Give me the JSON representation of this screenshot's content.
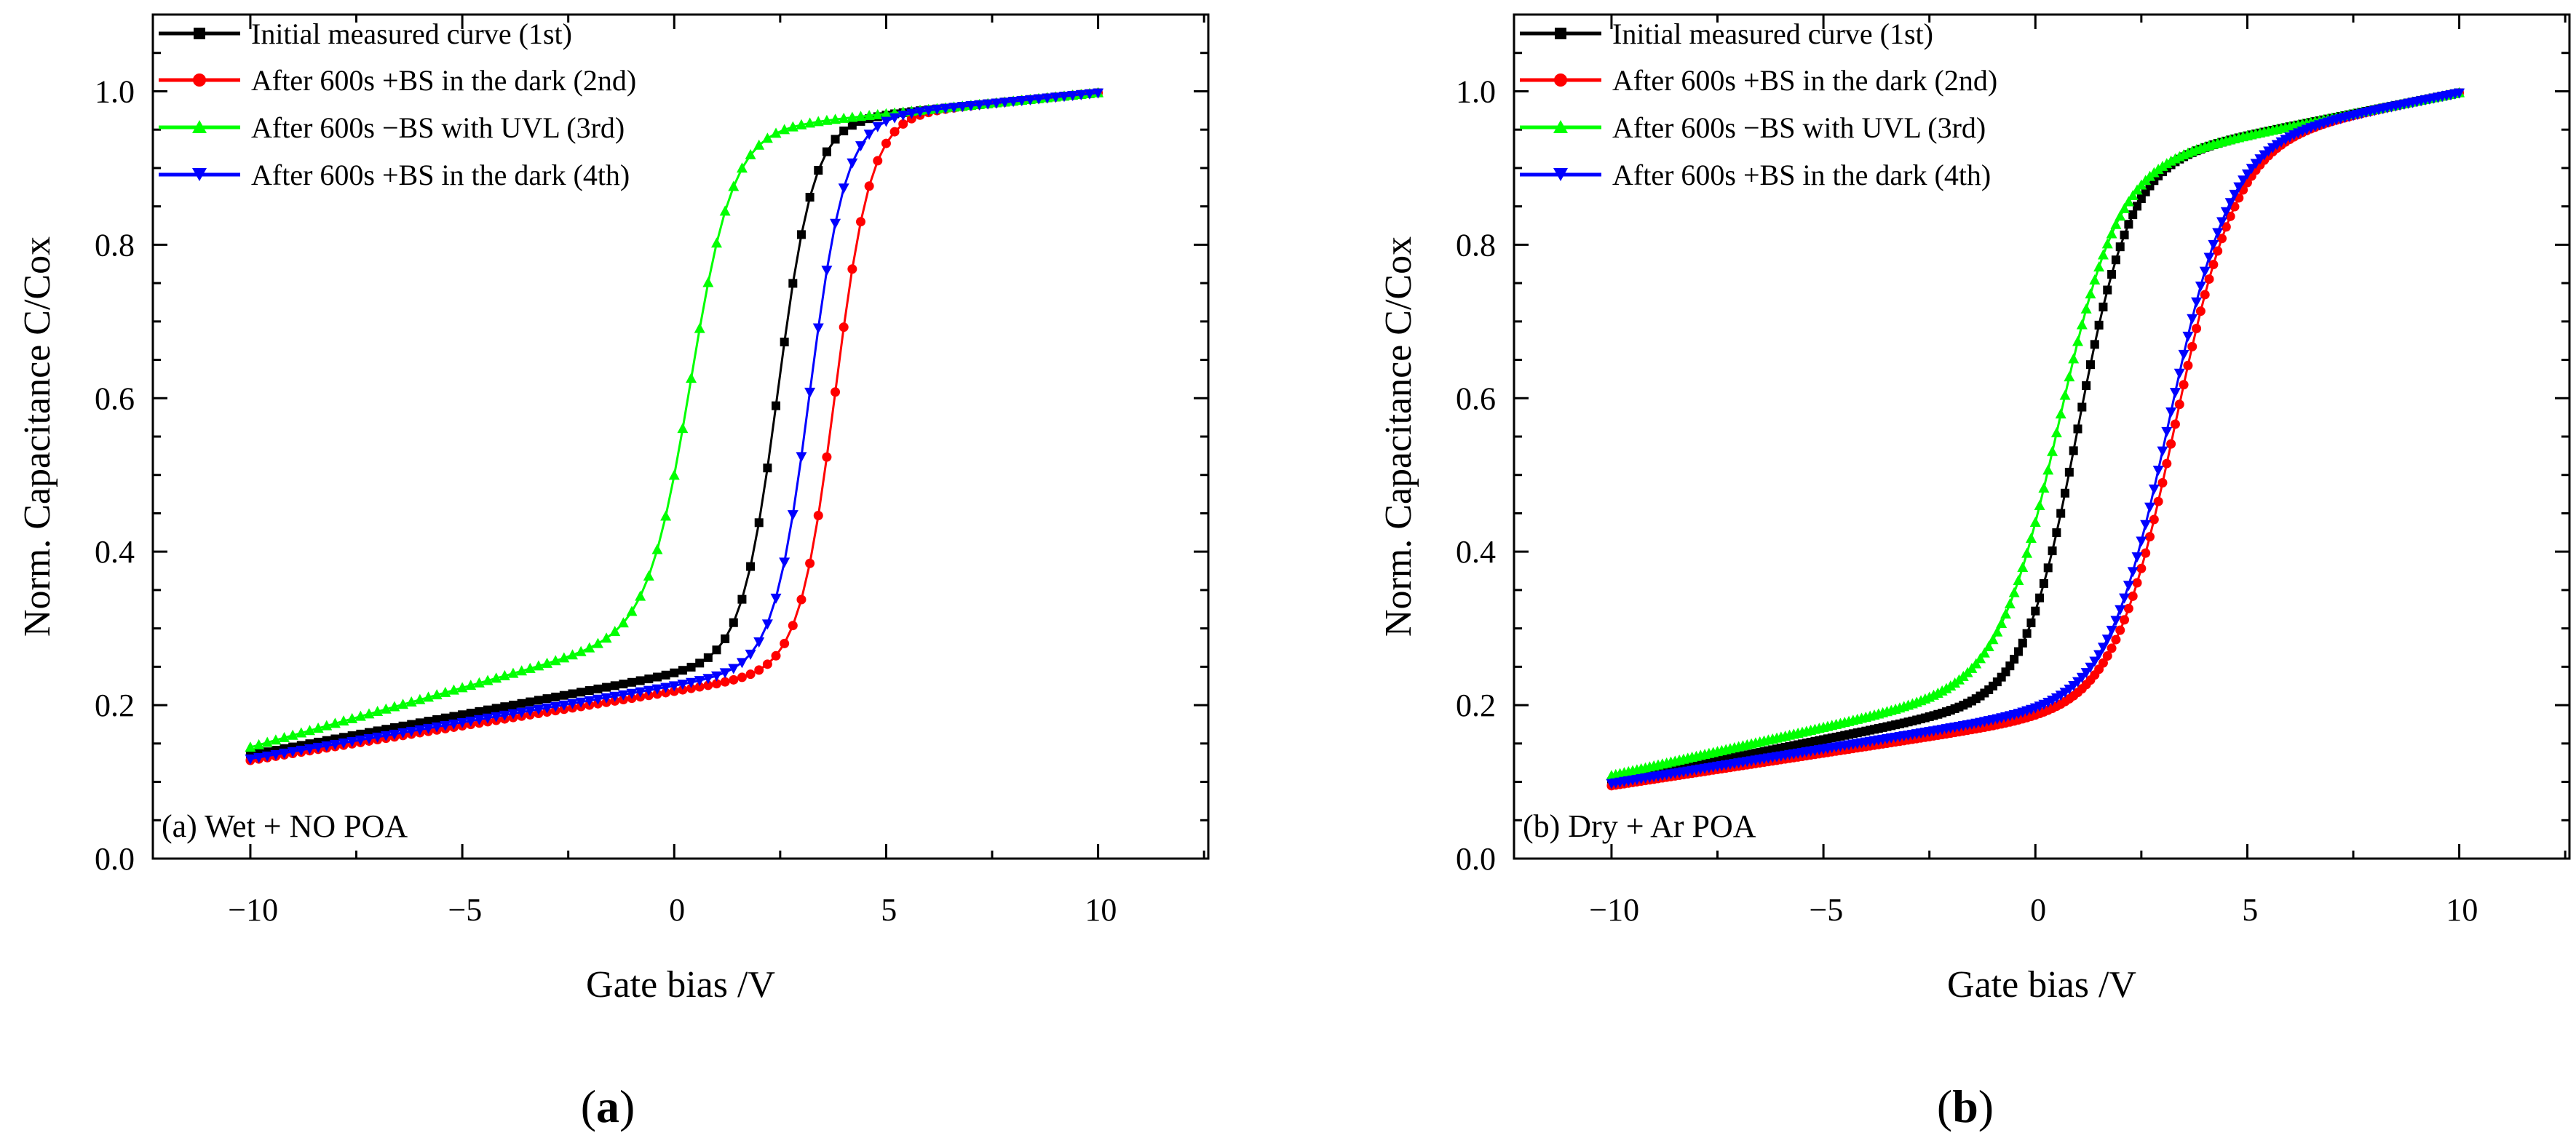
{
  "colors": {
    "black": "#000000",
    "red": "#ff0000",
    "green": "#00ff00",
    "blue": "#0000ff"
  },
  "chart_data": [
    {
      "type": "line",
      "panel": "a",
      "caption_letter": "a",
      "annotation": "(a) Wet + NO POA",
      "xlabel": "Gate bias /V",
      "ylabel": "Norm. Capacitance C/Cox",
      "xlim": [
        -12.3,
        12.6
      ],
      "ylim": [
        0.0,
        1.1
      ],
      "xticks": [
        -10,
        -5,
        0,
        5,
        10
      ],
      "xtick_labels": [
        "−10",
        "−5",
        "0",
        "5",
        "10"
      ],
      "yticks": [
        0.0,
        0.2,
        0.4,
        0.6,
        0.8,
        1.0
      ],
      "ytick_labels": [
        "0.0",
        "0.2",
        "0.4",
        "0.6",
        "0.8",
        "1.0"
      ],
      "legend_position": "top-left",
      "x_range": [
        -10,
        10
      ],
      "n_points": 101,
      "series": [
        {
          "name": "Initial measured curve (1st)",
          "color": "black",
          "marker": "square",
          "sigmoid": {
            "vmid": 2.45,
            "w": 0.42,
            "base_l": 0.135,
            "slope_l": 0.0105,
            "base_h": 0.998,
            "slope_h": 0.0055
          }
        },
        {
          "name": "After 600s +BS in the dark (2nd)",
          "color": "red",
          "marker": "circle",
          "sigmoid": {
            "vmid": 3.8,
            "w": 0.42,
            "base_l": 0.128,
            "slope_l": 0.009,
            "base_h": 0.998,
            "slope_h": 0.0055
          }
        },
        {
          "name": "After 600s −BS with UVL (3rd)",
          "color": "green",
          "marker": "triangle-up",
          "sigmoid": {
            "vmid": 0.4,
            "w": 0.5,
            "base_l": 0.145,
            "slope_l": 0.0155,
            "base_h": 0.998,
            "slope_h": 0.0055
          }
        },
        {
          "name": "After 600s +BS in the dark (4th)",
          "color": "blue",
          "marker": "triangle-down",
          "sigmoid": {
            "vmid": 3.2,
            "w": 0.42,
            "base_l": 0.13,
            "slope_l": 0.0095,
            "base_h": 0.998,
            "slope_h": 0.0055
          }
        }
      ]
    },
    {
      "type": "line",
      "panel": "b",
      "caption_letter": "b",
      "annotation": "(b) Dry + Ar POA",
      "xlabel": "Gate bias /V",
      "ylabel": "Norm. Capacitance C/Cox",
      "xlim": [
        -12.3,
        12.6
      ],
      "ylim": [
        0.0,
        1.1
      ],
      "xticks": [
        -10,
        -5,
        0,
        5,
        10
      ],
      "xtick_labels": [
        "−10",
        "−5",
        "0",
        "5",
        "10"
      ],
      "yticks": [
        0.0,
        0.2,
        0.4,
        0.6,
        0.8,
        1.0
      ],
      "ytick_labels": [
        "0.0",
        "0.2",
        "0.4",
        "0.6",
        "0.8",
        "1.0"
      ],
      "legend_position": "top-left",
      "x_range": [
        -10,
        10
      ],
      "n_points": 201,
      "series": [
        {
          "name": "Initial measured curve (1st)",
          "color": "black",
          "marker": "square",
          "sigmoid": {
            "vmid": 1.0,
            "w": 0.62,
            "base_l": 0.1,
            "slope_l": 0.011,
            "base_h": 0.998,
            "slope_h": 0.011
          }
        },
        {
          "name": "After 600s +BS in the dark (2nd)",
          "color": "red",
          "marker": "circle",
          "sigmoid": {
            "vmid": 3.3,
            "w": 0.72,
            "base_l": 0.095,
            "slope_l": 0.0085,
            "base_h": 0.998,
            "slope_h": 0.011
          }
        },
        {
          "name": "After 600s −BS with UVL (3rd)",
          "color": "green",
          "marker": "triangle-up",
          "sigmoid": {
            "vmid": 0.55,
            "w": 0.7,
            "base_l": 0.108,
            "slope_l": 0.0125,
            "base_h": 0.998,
            "slope_h": 0.011
          }
        },
        {
          "name": "After 600s +BS in the dark (4th)",
          "color": "blue",
          "marker": "triangle-down",
          "sigmoid": {
            "vmid": 3.15,
            "w": 0.72,
            "base_l": 0.098,
            "slope_l": 0.009,
            "base_h": 0.998,
            "slope_h": 0.011
          }
        }
      ]
    }
  ]
}
